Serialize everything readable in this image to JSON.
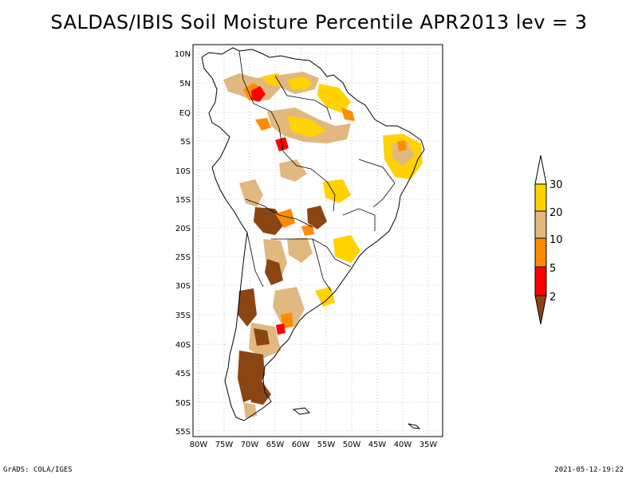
{
  "title": "SALDAS/IBIS Soil Moisture Percentile APR2013 lev = 3",
  "footer": {
    "left": "GrADS: COLA/IGES",
    "right": "2021-05-12-19:22"
  },
  "map": {
    "lon_range": [
      -81,
      -33
    ],
    "lat_range": [
      -56,
      11
    ],
    "lat_ticks": [
      "10N",
      "5N",
      "EQ",
      "5S",
      "10S",
      "15S",
      "20S",
      "25S",
      "30S",
      "35S",
      "40S",
      "45S",
      "50S",
      "55S"
    ],
    "lon_ticks": [
      "80W",
      "75W",
      "70W",
      "65W",
      "60W",
      "55W",
      "50W",
      "45W",
      "40W",
      "35W"
    ]
  },
  "legend": {
    "labels": [
      "30",
      "20",
      "10",
      "5",
      "2"
    ],
    "colors": {
      "above_30": "#ffffff",
      "20_30": "#ffd200",
      "10_20": "#e0b880",
      "5_10": "#ff8c00",
      "2_5": "#ff0000",
      "below_2": "#8b4513"
    }
  }
}
